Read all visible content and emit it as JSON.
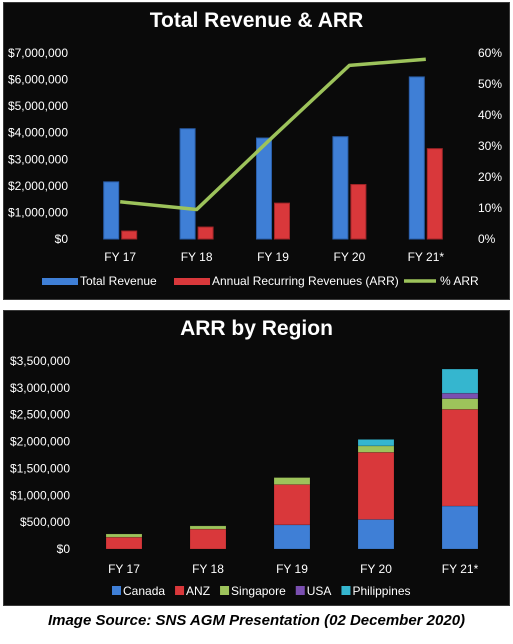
{
  "caption": "Image Source: SNS AGM Presentation (02 December 2020)",
  "colors": {
    "panel_bg": "#0a0a0a",
    "text": "#ffffff",
    "total_revenue": "#3f7fd6",
    "arr": "#d9383b",
    "pct_arr": "#9dc35b",
    "canada": "#3f7fd6",
    "anz": "#d9383b",
    "singapore": "#9dc35b",
    "usa": "#7a4fb0",
    "philippines": "#35b6cf"
  },
  "chart_data": [
    {
      "type": "bar",
      "title": "Total Revenue & ARR",
      "categories": [
        "FY 17",
        "FY 18",
        "FY 19",
        "FY 20",
        "FY 21*"
      ],
      "y_ticks": [
        "$0",
        "$1,000,000",
        "$2,000,000",
        "$3,000,000",
        "$4,000,000",
        "$5,000,000",
        "$6,000,000",
        "$7,000,000"
      ],
      "y2_ticks": [
        "0%",
        "10%",
        "20%",
        "30%",
        "40%",
        "50%",
        "60%"
      ],
      "ylim": [
        0,
        7000000
      ],
      "y2lim": [
        0,
        0.6
      ],
      "series": [
        {
          "name": "Total Revenue",
          "kind": "bar",
          "axis": "left",
          "color": "#3f7fd6",
          "values": [
            2150000,
            4150000,
            3800000,
            3850000,
            6100000
          ]
        },
        {
          "name": "Annual Recurring Revenues (ARR)",
          "kind": "bar",
          "axis": "left",
          "color": "#d9383b",
          "values": [
            300000,
            450000,
            1350000,
            2050000,
            3400000
          ]
        },
        {
          "name": "% ARR",
          "kind": "line",
          "axis": "right",
          "color": "#9dc35b",
          "values": [
            0.12,
            0.095,
            0.33,
            0.56,
            0.58
          ]
        }
      ],
      "legend": "bottom"
    },
    {
      "type": "bar",
      "stacked": true,
      "title": "ARR by Region",
      "categories": [
        "FY 17",
        "FY 18",
        "FY 19",
        "FY 20",
        "FY 21*"
      ],
      "y_ticks": [
        "$0",
        "$500,000",
        "$1,000,000",
        "$1,500,000",
        "$2,000,000",
        "$2,500,000",
        "$3,000,000",
        "$3,500,000"
      ],
      "ylim": [
        0,
        3500000
      ],
      "series": [
        {
          "name": "Canada",
          "color": "#3f7fd6",
          "values": [
            0,
            0,
            450000,
            550000,
            800000
          ]
        },
        {
          "name": "ANZ",
          "color": "#d9383b",
          "values": [
            220000,
            370000,
            750000,
            1250000,
            1800000
          ]
        },
        {
          "name": "Singapore",
          "color": "#9dc35b",
          "values": [
            60000,
            60000,
            130000,
            120000,
            200000
          ]
        },
        {
          "name": "USA",
          "color": "#7a4fb0",
          "values": [
            0,
            0,
            0,
            0,
            100000
          ]
        },
        {
          "name": "Philippines",
          "color": "#35b6cf",
          "values": [
            0,
            0,
            0,
            120000,
            450000
          ]
        }
      ],
      "legend": "bottom"
    }
  ]
}
